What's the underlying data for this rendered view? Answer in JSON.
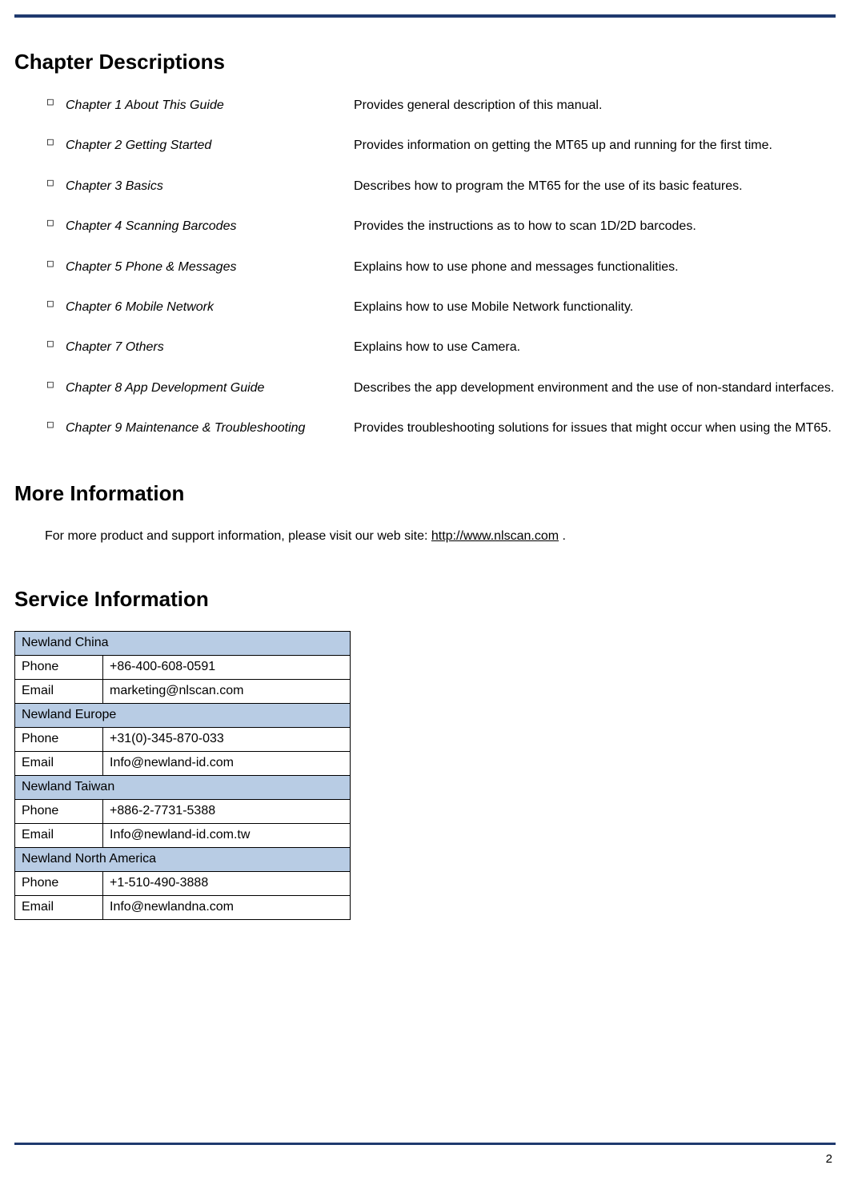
{
  "page_number": "2",
  "colors": {
    "rule": "#1f3a6e",
    "table_header_bg": "#b8cce4",
    "table_border": "#000000",
    "text": "#000000",
    "background": "#ffffff"
  },
  "sections": {
    "chapter_descriptions": {
      "heading": "Chapter Descriptions",
      "items": [
        {
          "title": "Chapter 1 About This Guide",
          "desc": "Provides general description of this manual."
        },
        {
          "title": "Chapter 2 Getting Started",
          "desc": "Provides information on getting the MT65 up and running for the first time."
        },
        {
          "title": "Chapter 3 Basics",
          "desc": "Describes how to program the MT65 for the use of its basic features."
        },
        {
          "title": "Chapter 4 Scanning Barcodes",
          "desc": "Provides the instructions as to how to scan 1D/2D barcodes."
        },
        {
          "title": "Chapter 5 Phone & Messages",
          "desc": "Explains how to use phone and messages functionalities."
        },
        {
          "title": "Chapter 6 Mobile Network",
          "desc": "Explains how to use Mobile Network functionality."
        },
        {
          "title": "Chapter 7 Others",
          "desc": "Explains how to use Camera."
        },
        {
          "title": "Chapter 8 App Development Guide",
          "desc": "Describes the app development environment and the use of non-standard interfaces."
        },
        {
          "title": "Chapter 9 Maintenance & Troubleshooting",
          "desc": "Provides troubleshooting solutions for issues that might occur when using the MT65."
        }
      ]
    },
    "more_information": {
      "heading": "More Information",
      "text_prefix": "For more product and support information, please visit our web site: ",
      "link_text": "http://www.nlscan.com",
      "text_suffix": " ."
    },
    "service_information": {
      "heading": "Service Information",
      "regions": [
        {
          "name": "Newland China",
          "rows": [
            {
              "label": "Phone",
              "value": "+86-400-608-0591"
            },
            {
              "label": "Email",
              "value": "marketing@nlscan.com"
            }
          ]
        },
        {
          "name": "Newland Europe",
          "rows": [
            {
              "label": "Phone",
              "value": "+31(0)-345-870-033"
            },
            {
              "label": "Email",
              "value": "Info@newland-id.com"
            }
          ]
        },
        {
          "name": "Newland Taiwan",
          "rows": [
            {
              "label": "Phone",
              "value": "+886-2-7731-5388"
            },
            {
              "label": "Email",
              "value": "Info@newland-id.com.tw"
            }
          ]
        },
        {
          "name": "Newland North America",
          "rows": [
            {
              "label": "Phone",
              "value": "+1-510-490-3888"
            },
            {
              "label": "Email",
              "value": "Info@newlandna.com"
            }
          ]
        }
      ]
    }
  }
}
